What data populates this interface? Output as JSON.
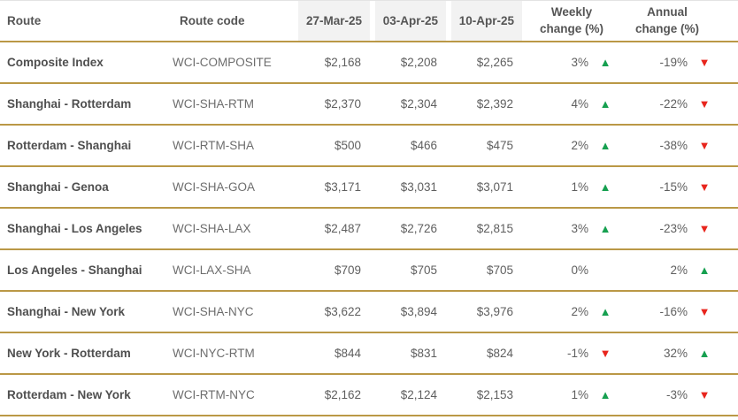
{
  "chart_data": {
    "type": "table",
    "columns": [
      "Route",
      "Route code",
      "27-Mar-25",
      "03-Apr-25",
      "10-Apr-25",
      "Weekly change (%)",
      "Annual change (%)"
    ],
    "rows": [
      {
        "route": "Composite Index",
        "code": "WCI-COMPOSITE",
        "prices": [
          "$2,168",
          "$2,208",
          "$2,265"
        ],
        "weekly": "3%",
        "weekly_dir": "up",
        "annual": "-19%",
        "annual_dir": "down"
      },
      {
        "route": "Shanghai - Rotterdam",
        "code": "WCI-SHA-RTM",
        "prices": [
          "$2,370",
          "$2,304",
          "$2,392"
        ],
        "weekly": "4%",
        "weekly_dir": "up",
        "annual": "-22%",
        "annual_dir": "down"
      },
      {
        "route": "Rotterdam - Shanghai",
        "code": "WCI-RTM-SHA",
        "prices": [
          "$500",
          "$466",
          "$475"
        ],
        "weekly": "2%",
        "weekly_dir": "up",
        "annual": "-38%",
        "annual_dir": "down"
      },
      {
        "route": "Shanghai - Genoa",
        "code": "WCI-SHA-GOA",
        "prices": [
          "$3,171",
          "$3,031",
          "$3,071"
        ],
        "weekly": "1%",
        "weekly_dir": "up",
        "annual": "-15%",
        "annual_dir": "down"
      },
      {
        "route": "Shanghai - Los Angeles",
        "code": "WCI-SHA-LAX",
        "prices": [
          "$2,487",
          "$2,726",
          "$2,815"
        ],
        "weekly": "3%",
        "weekly_dir": "up",
        "annual": "-23%",
        "annual_dir": "down"
      },
      {
        "route": "Los Angeles - Shanghai",
        "code": "WCI-LAX-SHA",
        "prices": [
          "$709",
          "$705",
          "$705"
        ],
        "weekly": "0%",
        "weekly_dir": "none",
        "annual": "2%",
        "annual_dir": "up"
      },
      {
        "route": "Shanghai - New York",
        "code": "WCI-SHA-NYC",
        "prices": [
          "$3,622",
          "$3,894",
          "$3,976"
        ],
        "weekly": "2%",
        "weekly_dir": "up",
        "annual": "-16%",
        "annual_dir": "down"
      },
      {
        "route": "New York - Rotterdam",
        "code": "WCI-NYC-RTM",
        "prices": [
          "$844",
          "$831",
          "$824"
        ],
        "weekly": "-1%",
        "weekly_dir": "down",
        "annual": "32%",
        "annual_dir": "up"
      },
      {
        "route": "Rotterdam - New York",
        "code": "WCI-RTM-NYC",
        "prices": [
          "$2,162",
          "$2,124",
          "$2,153"
        ],
        "weekly": "1%",
        "weekly_dir": "up",
        "annual": "-3%",
        "annual_dir": "down"
      }
    ]
  },
  "icons": {
    "up_arrow": "▲",
    "down_arrow": "▼"
  },
  "colors": {
    "gold_border": "#ba9846",
    "up_green": "#16a050",
    "down_red": "#e8251d",
    "header_gray_bg": "#f2f2f2",
    "header_text": "#555555",
    "route_text": "#4f4f4f"
  }
}
